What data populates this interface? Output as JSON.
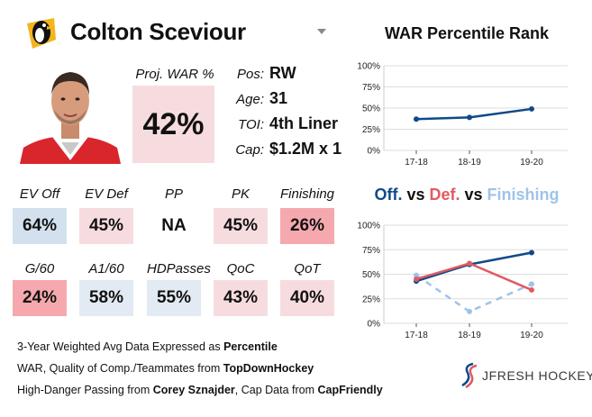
{
  "header": {
    "player_name": "Colton Sceviour"
  },
  "proj_war": {
    "label": "Proj. WAR %",
    "value": "42%",
    "color": "#f7dcdf"
  },
  "info": [
    {
      "label": "Pos:",
      "value": "RW"
    },
    {
      "label": "Age:",
      "value": "31"
    },
    {
      "label": "TOI:",
      "value": "4th Liner"
    },
    {
      "label": "Cap:",
      "value": "$1.2M x 1"
    }
  ],
  "stats_row1": [
    {
      "label": "EV Off",
      "value": "64%",
      "color": "#d3e1ef"
    },
    {
      "label": "EV Def",
      "value": "45%",
      "color": "#f7dcdf"
    },
    {
      "label": "PP",
      "value": "NA",
      "color": "#ffffff"
    },
    {
      "label": "PK",
      "value": "45%",
      "color": "#f7dcdf"
    },
    {
      "label": "Finishing",
      "value": "26%",
      "color": "#f5a9ae"
    }
  ],
  "stats_row2": [
    {
      "label": "G/60",
      "value": "24%",
      "color": "#f5a9ae"
    },
    {
      "label": "A1/60",
      "value": "58%",
      "color": "#e2eaf3"
    },
    {
      "label": "HDPasses",
      "value": "55%",
      "color": "#e2eaf3"
    },
    {
      "label": "QoC",
      "value": "43%",
      "color": "#f7dcdf"
    },
    {
      "label": "QoT",
      "value": "40%",
      "color": "#f7dcdf"
    }
  ],
  "footnotes": {
    "line1_prefix": "3-Year Weighted Avg Data Expressed as ",
    "line1_bold": "Percentile",
    "line2_prefix": "WAR, Quality of Comp./Teammates from ",
    "line2_bold": "TopDownHockey",
    "line3_prefix": "High-Danger Passing from ",
    "line3_bold1": "Corey Sznajder",
    "line3_mid": ", Cap Data from ",
    "line3_bold2": "CapFriendly"
  },
  "chart_titles": {
    "war_title": "WAR Percentile Rank",
    "comp_off": "Off.",
    "comp_vs1": " vs ",
    "comp_def": "Def.",
    "comp_vs2": " vs ",
    "comp_fin": "Finishing"
  },
  "brand": {
    "name": "JFRESH HOCKEY"
  },
  "colors": {
    "offense": "#0e4a8a",
    "defense": "#e05a62",
    "finishing": "#9fc3e8"
  },
  "chart_data": [
    {
      "type": "line",
      "title": "WAR Percentile Rank",
      "categories": [
        "17-18",
        "18-19",
        "19-20"
      ],
      "yticks": [
        "0%",
        "25%",
        "50%",
        "75%",
        "100%"
      ],
      "ylim": [
        0,
        100
      ],
      "series": [
        {
          "values": [
            37,
            39,
            49
          ],
          "color": "#0e4a8a",
          "dashed": false
        }
      ]
    },
    {
      "type": "line",
      "title": "Off. vs Def. vs Finishing",
      "categories": [
        "17-18",
        "18-19",
        "19-20"
      ],
      "yticks": [
        "0%",
        "25%",
        "50%",
        "75%",
        "100%"
      ],
      "ylim": [
        0,
        100
      ],
      "series": [
        {
          "name": "Finishing",
          "values": [
            49,
            12,
            40
          ],
          "color": "#9fc3e8",
          "dashed": true
        },
        {
          "name": "Off.",
          "values": [
            43,
            60,
            72
          ],
          "color": "#0e4a8a",
          "dashed": false
        },
        {
          "name": "Def.",
          "values": [
            45,
            61,
            34
          ],
          "color": "#e05a62",
          "dashed": false
        }
      ]
    }
  ]
}
